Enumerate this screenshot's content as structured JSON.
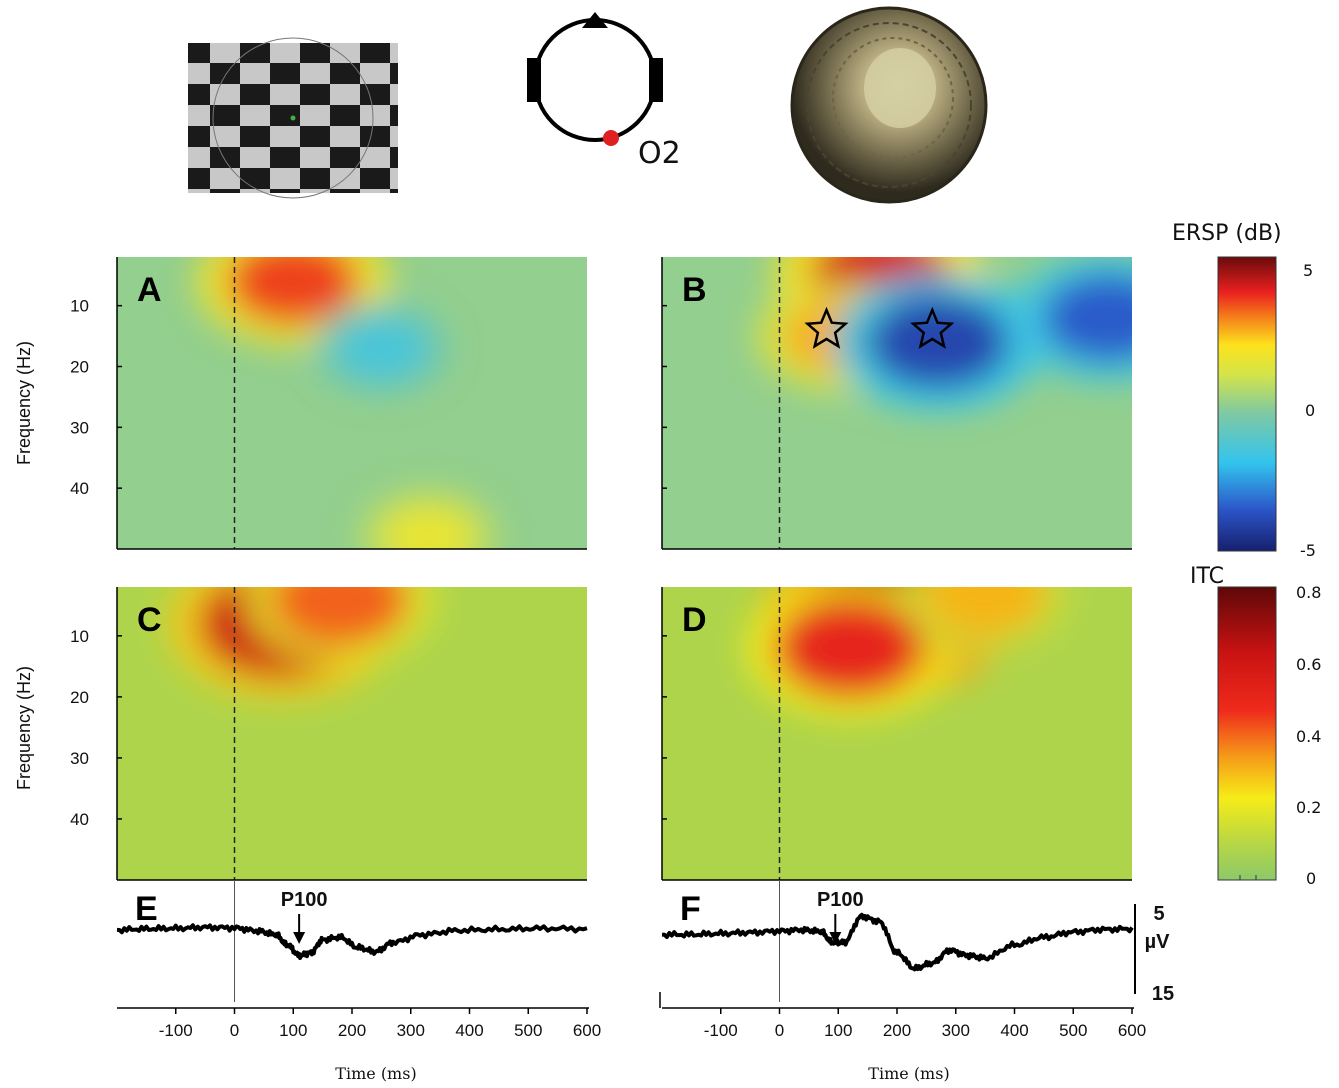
{
  "figure": {
    "electrode_label": "O2",
    "ersp_colorbar": {
      "title": "ERSP (dB)",
      "ticks": [
        "5",
        "0",
        "-5"
      ],
      "values": [
        5,
        0,
        -5
      ],
      "range": [
        -5,
        5
      ]
    },
    "itc_colorbar": {
      "title": "ITC",
      "ticks": [
        "0.8",
        "0.6",
        "0.4",
        "0.2",
        "0"
      ],
      "values": [
        0.8,
        0.6,
        0.4,
        0.2,
        0
      ],
      "range": [
        0,
        0.8
      ]
    },
    "colors": {
      "ersp_low": "#1c2a8c",
      "ersp_mid": "#7fc9a2",
      "ersp_high": "#8a0e0e",
      "itc_low": "#8cc96a",
      "itc_high": "#7a0c0c",
      "star": "#000000"
    }
  },
  "chart_data": [
    {
      "panel": "A",
      "type": "heatmap",
      "measure": "ERSP",
      "xlabel": "",
      "ylabel": "Frequency (Hz)",
      "xlim": [
        -200,
        600
      ],
      "ylim": [
        2,
        50
      ],
      "yticks": [
        "10",
        "20",
        "30",
        "40"
      ],
      "ytick_values": [
        10,
        20,
        30,
        40
      ],
      "stimulus_onset_ms": 0,
      "features": [
        {
          "time_ms": 100,
          "freq_hz": 6,
          "value_db": 3.5
        },
        {
          "time_ms": 250,
          "freq_hz": 17,
          "value_db": -1.5
        },
        {
          "time_ms": 330,
          "freq_hz": 48,
          "value_db": 1.5
        }
      ]
    },
    {
      "panel": "B",
      "type": "heatmap",
      "measure": "ERSP",
      "xlabel": "",
      "ylabel": "",
      "xlim": [
        -200,
        600
      ],
      "ylim": [
        2,
        50
      ],
      "yticks": [
        "10",
        "20",
        "30",
        "40"
      ],
      "ytick_values": [
        10,
        20,
        30,
        40
      ],
      "stimulus_onset_ms": 0,
      "features": [
        {
          "time_ms": 170,
          "freq_hz": 5,
          "value_db": 4.0
        },
        {
          "time_ms": 100,
          "freq_hz": 15,
          "value_db": 2.5
        },
        {
          "time_ms": 270,
          "freq_hz": 16,
          "value_db": -4.0
        },
        {
          "time_ms": 560,
          "freq_hz": 12,
          "value_db": -3.5
        }
      ],
      "stars": [
        {
          "time_ms": 80,
          "freq_hz": 14
        },
        {
          "time_ms": 260,
          "freq_hz": 14
        }
      ]
    },
    {
      "panel": "C",
      "type": "heatmap",
      "measure": "ITC",
      "xlabel": "",
      "ylabel": "Frequency (Hz)",
      "xlim": [
        -200,
        600
      ],
      "ylim": [
        2,
        50
      ],
      "yticks": [
        "10",
        "20",
        "30",
        "40"
      ],
      "ytick_values": [
        10,
        20,
        30,
        40
      ],
      "stimulus_onset_ms": 0,
      "features": [
        {
          "time_ms": 80,
          "freq_hz": 8,
          "value": 0.6
        },
        {
          "time_ms": 180,
          "freq_hz": 4,
          "value": 0.4
        }
      ]
    },
    {
      "panel": "D",
      "type": "heatmap",
      "measure": "ITC",
      "xlabel": "",
      "ylabel": "",
      "xlim": [
        -200,
        600
      ],
      "ylim": [
        2,
        50
      ],
      "yticks": [
        "10",
        "20",
        "30",
        "40"
      ],
      "ytick_values": [
        10,
        20,
        30,
        40
      ],
      "stimulus_onset_ms": 0,
      "features": [
        {
          "time_ms": 180,
          "freq_hz": 7,
          "value": 0.7
        },
        {
          "time_ms": 120,
          "freq_hz": 12,
          "value": 0.5
        },
        {
          "time_ms": 350,
          "freq_hz": 3,
          "value": 0.3
        }
      ]
    },
    {
      "panel": "E",
      "type": "line",
      "measure": "ERP",
      "xlabel": "Time (ms)",
      "xlim": [
        -200,
        600
      ],
      "xticks": [
        "-100",
        "0",
        "100",
        "200",
        "300",
        "400",
        "500",
        "600"
      ],
      "xtick_values": [
        -100,
        0,
        100,
        200,
        300,
        400,
        500,
        600
      ],
      "annotation": {
        "text": "P100",
        "time_ms": 110
      },
      "x": [
        -200,
        -150,
        -100,
        -50,
        0,
        40,
        70,
        90,
        110,
        130,
        150,
        180,
        210,
        240,
        270,
        320,
        380,
        450,
        520,
        600
      ],
      "y": [
        0.4,
        0.6,
        0.7,
        0.9,
        0.8,
        0.2,
        -0.5,
        -2.5,
        -4.5,
        -4.0,
        -1.5,
        -1.0,
        -3.0,
        -3.8,
        -2.0,
        -0.5,
        0.3,
        0.5,
        0.7,
        0.6
      ]
    },
    {
      "panel": "F",
      "type": "line",
      "measure": "ERP",
      "xlabel": "Time (ms)",
      "xlim": [
        -200,
        600
      ],
      "xticks": [
        "-100",
        "0",
        "100",
        "200",
        "300",
        "400",
        "500",
        "600"
      ],
      "xtick_values": [
        -100,
        0,
        100,
        200,
        300,
        400,
        500,
        600
      ],
      "annotation": {
        "text": "P100",
        "time_ms": 95
      },
      "scale": {
        "top": "5",
        "unit": "µV",
        "bottom": "15"
      },
      "x": [
        -200,
        -150,
        -100,
        -50,
        0,
        40,
        70,
        90,
        110,
        140,
        170,
        200,
        230,
        260,
        290,
        320,
        350,
        400,
        450,
        500,
        550,
        600
      ],
      "y": [
        -0.5,
        -0.5,
        -0.3,
        -0.1,
        0.2,
        0.4,
        0.1,
        -2.0,
        -2.0,
        3.0,
        2.0,
        -4.0,
        -7.0,
        -6.0,
        -3.5,
        -4.5,
        -5.0,
        -2.5,
        -1.0,
        0,
        0.5,
        0.6
      ]
    }
  ]
}
